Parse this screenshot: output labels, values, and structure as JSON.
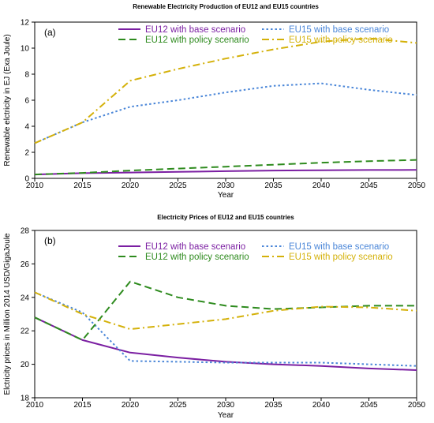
{
  "chart_data": [
    {
      "type": "line",
      "title": "Renewable Electricity Production of EU12 and EU15 countries",
      "panel_label": "(a)",
      "xlabel": "Year",
      "ylabel": "Renewable elctricity in EJ (Exa Joule)",
      "xlim": [
        2010,
        2050
      ],
      "ylim": [
        0,
        12
      ],
      "xticks": [
        2010,
        2015,
        2020,
        2025,
        2030,
        2035,
        2040,
        2045,
        2050
      ],
      "yticks": [
        0,
        2,
        4,
        6,
        8,
        10,
        12
      ],
      "x": [
        2010,
        2015,
        2020,
        2025,
        2030,
        2035,
        2040,
        2045,
        2050
      ],
      "grid": false,
      "legend_position": "top-right",
      "series": [
        {
          "name": "EU12 with base scenario",
          "color": "#7B1FA2",
          "style": "solid",
          "values": [
            0.3,
            0.4,
            0.45,
            0.5,
            0.55,
            0.6,
            0.62,
            0.64,
            0.65
          ]
        },
        {
          "name": "EU15 with base scenario",
          "color": "#4A86D8",
          "style": "dotted",
          "values": [
            2.7,
            4.3,
            5.5,
            6.0,
            6.6,
            7.1,
            7.3,
            6.8,
            6.4
          ]
        },
        {
          "name": "EU12 with policy scenario",
          "color": "#2E8B1E",
          "style": "dashed",
          "values": [
            0.3,
            0.42,
            0.6,
            0.75,
            0.9,
            1.05,
            1.2,
            1.32,
            1.42
          ]
        },
        {
          "name": "EU15 with policy scenario",
          "color": "#D4B10A",
          "style": "dashdot",
          "values": [
            2.7,
            4.3,
            7.5,
            8.4,
            9.2,
            9.9,
            10.5,
            10.75,
            10.4
          ]
        }
      ]
    },
    {
      "type": "line",
      "title": "Electricity Prices of EU12 and EU15 countries",
      "panel_label": "(b)",
      "xlabel": "Year",
      "ylabel": "Elctricity prices in Million 2014 USD/GigaJoule",
      "xlim": [
        2010,
        2050
      ],
      "ylim": [
        18,
        28
      ],
      "xticks": [
        2010,
        2015,
        2020,
        2025,
        2030,
        2035,
        2040,
        2045,
        2050
      ],
      "yticks": [
        18,
        20,
        22,
        24,
        26,
        28
      ],
      "x": [
        2010,
        2015,
        2020,
        2025,
        2030,
        2035,
        2040,
        2045,
        2050
      ],
      "grid": false,
      "legend_position": "top-right",
      "series": [
        {
          "name": "EU12 with base scenario",
          "color": "#7B1FA2",
          "style": "solid",
          "values": [
            22.8,
            21.45,
            20.7,
            20.4,
            20.15,
            20.0,
            19.9,
            19.75,
            19.65
          ]
        },
        {
          "name": "EU15 with base scenario",
          "color": "#4A86D8",
          "style": "dotted",
          "values": [
            24.3,
            23.1,
            20.2,
            20.15,
            20.1,
            20.1,
            20.1,
            20.0,
            19.9
          ]
        },
        {
          "name": "EU12 with policy scenario",
          "color": "#2E8B1E",
          "style": "dashed",
          "values": [
            22.8,
            21.45,
            24.95,
            24.0,
            23.5,
            23.3,
            23.4,
            23.5,
            23.5
          ]
        },
        {
          "name": "EU15 with policy scenario",
          "color": "#D4B10A",
          "style": "dashdot",
          "values": [
            24.3,
            23.0,
            22.1,
            22.4,
            22.7,
            23.2,
            23.45,
            23.4,
            23.2
          ]
        }
      ]
    }
  ]
}
